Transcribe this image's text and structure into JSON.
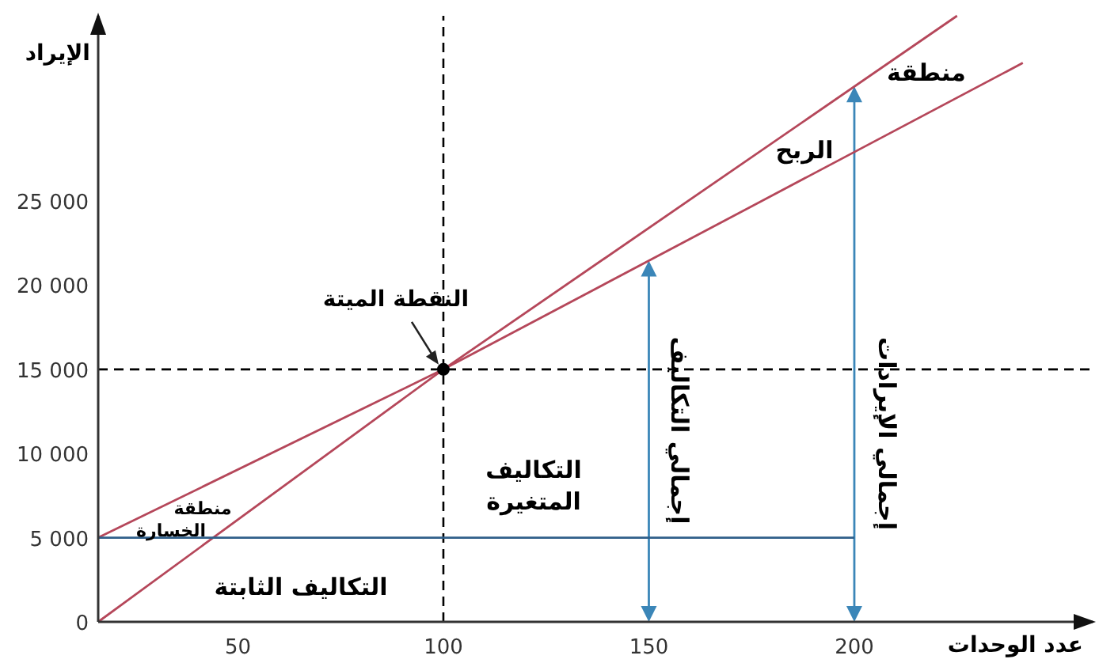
{
  "chart_data": {
    "type": "line",
    "xlabel": "عدد الوحدات",
    "ylabel": "الإيراد",
    "xlim": [
      16,
      258
    ],
    "ylim": [
      0,
      36000
    ],
    "xticks": [
      50,
      100,
      150,
      200
    ],
    "yticks": [
      0,
      {
        "value": 5000,
        "label": "5 000"
      },
      {
        "value": 10000,
        "label": "10 000"
      },
      {
        "value": 15000,
        "label": "15 000"
      },
      {
        "value": 20000,
        "label": "20 000"
      },
      {
        "value": 25000,
        "label": "25 000"
      }
    ],
    "grid": false,
    "series": [
      {
        "color": "#b5475a",
        "x": [
          16,
          100,
          225
        ],
        "values": [
          0,
          15000,
          36000
        ]
      },
      {
        "color": "#b5475a",
        "x": [
          16,
          100,
          241
        ],
        "values": [
          5000,
          15000,
          33200
        ]
      },
      {
        "color": "#2f5f8a",
        "x": [
          16,
          200
        ],
        "values": [
          5000,
          5000
        ]
      },
      {
        "type": "scatter",
        "color": "#000000",
        "x": [
          100
        ],
        "values": [
          15000
        ]
      }
    ],
    "ref_lines": [
      {
        "axis": "x",
        "value": 100,
        "color": "#000000",
        "line_style": "dashed"
      },
      {
        "axis": "y",
        "value": 15000,
        "color": "#000000",
        "line_style": "dashed"
      }
    ],
    "annotations": [
      {
        "text": "النقطة الميتة",
        "x": 100,
        "y": 15000
      },
      "منطقة",
      "الربح",
      "منطقة الخسارة",
      "التكاليف المتغيرة",
      "التكاليف الثابتة",
      "إجمالي التكاليف",
      "إجمالي الإيرادات"
    ]
  }
}
